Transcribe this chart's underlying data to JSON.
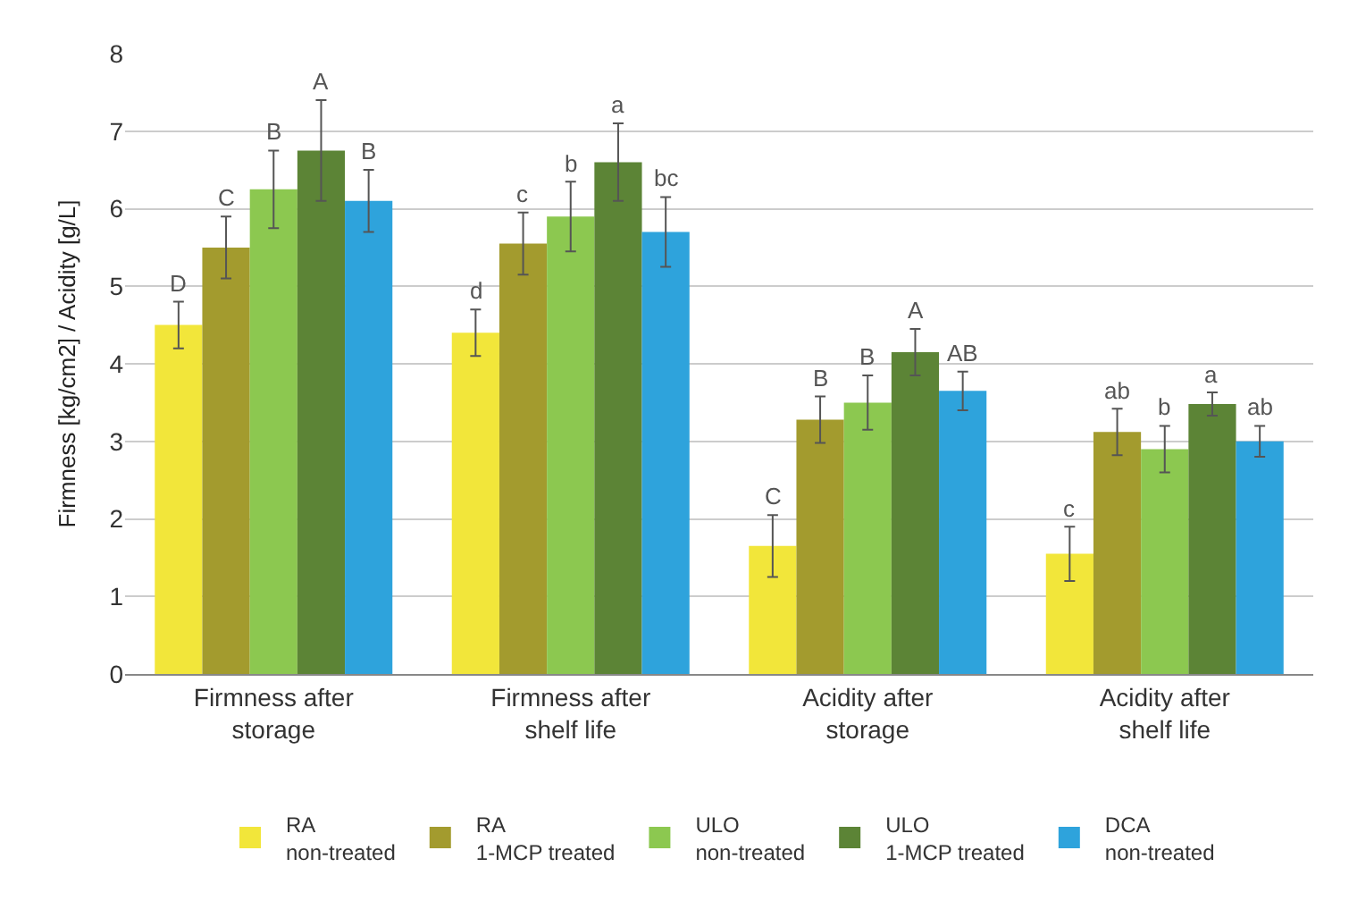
{
  "chart_data": {
    "type": "bar",
    "ylabel": "Firmness [kg/cm2] / Acidity [g/L]",
    "categories": [
      "Firmness after\nstorage",
      "Firmness after\nshelf life",
      "Acidity after\nstorage",
      "Acidity after\nshelf life"
    ],
    "series": [
      {
        "name": "RA\nnon-treated",
        "color": "#f2e63a",
        "values": [
          4.5,
          4.4,
          1.65,
          1.55
        ],
        "errors": [
          0.3,
          0.3,
          0.4,
          0.35
        ],
        "value_labels": [
          "D",
          "d",
          "C",
          "c"
        ]
      },
      {
        "name": "RA\n1-MCP treated",
        "color": "#a39b2e",
        "values": [
          5.5,
          5.55,
          3.28,
          3.12
        ],
        "errors": [
          0.4,
          0.4,
          0.3,
          0.3
        ],
        "value_labels": [
          "C",
          "c",
          "B",
          "ab"
        ]
      },
      {
        "name": "ULO\nnon-treated",
        "color": "#8cc850",
        "values": [
          6.25,
          5.9,
          3.5,
          2.9
        ],
        "errors": [
          0.5,
          0.45,
          0.35,
          0.3
        ],
        "value_labels": [
          "B",
          "b",
          "B",
          "b"
        ]
      },
      {
        "name": "ULO\n1-MCP treated",
        "color": "#5c8436",
        "values": [
          6.75,
          6.6,
          4.15,
          3.48
        ],
        "errors": [
          0.65,
          0.5,
          0.3,
          0.15
        ],
        "value_labels": [
          "A",
          "a",
          "A",
          "a"
        ]
      },
      {
        "name": "DCA\nnon-treated",
        "color": "#2ea3dc",
        "values": [
          6.1,
          5.7,
          3.65,
          3.0
        ],
        "errors": [
          0.4,
          0.45,
          0.25,
          0.2
        ],
        "value_labels": [
          "B",
          "bc",
          "AB",
          "ab"
        ]
      }
    ],
    "ylim": [
      0,
      8
    ],
    "yticks": [
      0,
      1,
      2,
      3,
      4,
      5,
      6,
      7,
      8
    ],
    "grid": "y",
    "legend": "bottom"
  }
}
